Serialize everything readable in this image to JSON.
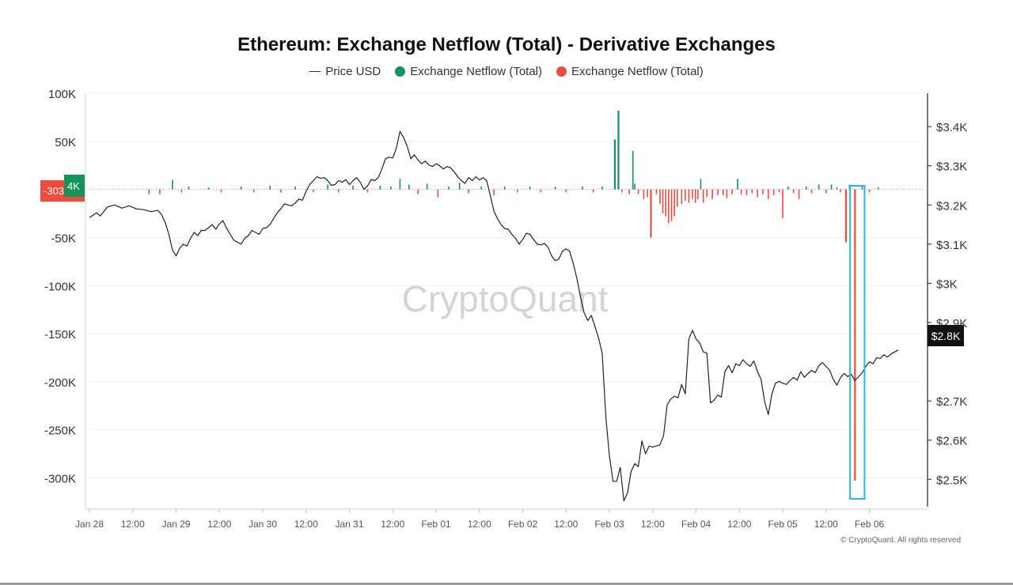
{
  "chart_data": {
    "type": "bar",
    "title": "Ethereum: Exchange Netflow (Total) - Derivative Exchanges",
    "legend": {
      "placement": "top-center",
      "items": [
        {
          "label": "Price USD",
          "kind": "line",
          "color": "#333333"
        },
        {
          "label": "Exchange Netflow (Total)",
          "kind": "dot",
          "color": "#14935B"
        },
        {
          "label": "Exchange Netflow (Total)",
          "kind": "dot",
          "color": "#F04A3E"
        }
      ]
    },
    "left_axis": {
      "label": "",
      "range": [
        -330000,
        100000
      ],
      "ticks": [
        {
          "value": 100000,
          "label": "100K"
        },
        {
          "value": 50000,
          "label": "50K"
        },
        {
          "value": -50000,
          "label": "-50K"
        },
        {
          "value": -100000,
          "label": "-100K"
        },
        {
          "value": -150000,
          "label": "-150K"
        },
        {
          "value": -200000,
          "label": "-200K"
        },
        {
          "value": -250000,
          "label": "-250K"
        },
        {
          "value": -300000,
          "label": "-300K"
        }
      ]
    },
    "right_axis": {
      "label": "",
      "range": [
        2430,
        3485
      ],
      "ticks": [
        {
          "value": 3400,
          "label": "$3.4K"
        },
        {
          "value": 3300,
          "label": "$3.3K"
        },
        {
          "value": 3200,
          "label": "$3.2K"
        },
        {
          "value": 3100,
          "label": "$3.1K"
        },
        {
          "value": 3000,
          "label": "$3K"
        },
        {
          "value": 2900,
          "label": "$2.9K"
        },
        {
          "value": 2700,
          "label": "$2.7K"
        },
        {
          "value": 2600,
          "label": "$2.6K"
        },
        {
          "value": 2500,
          "label": "$2.5K"
        }
      ]
    },
    "x_axis": {
      "range_hours": [
        0,
        231
      ],
      "ticks": [
        {
          "h": 0,
          "label": "Jan 28"
        },
        {
          "h": 12,
          "label": "12:00"
        },
        {
          "h": 24,
          "label": "Jan 29"
        },
        {
          "h": 36,
          "label": "12:00"
        },
        {
          "h": 48,
          "label": "Jan 30"
        },
        {
          "h": 60,
          "label": "12:00"
        },
        {
          "h": 72,
          "label": "Jan 31"
        },
        {
          "h": 84,
          "label": "12:00"
        },
        {
          "h": 96,
          "label": "Feb 01"
        },
        {
          "h": 108,
          "label": "12:00"
        },
        {
          "h": 120,
          "label": "Feb 02"
        },
        {
          "h": 132,
          "label": "12:00"
        },
        {
          "h": 144,
          "label": "Feb 03"
        },
        {
          "h": 156,
          "label": "12:00"
        },
        {
          "h": 168,
          "label": "Feb 04"
        },
        {
          "h": 180,
          "label": "12:00"
        },
        {
          "h": 192,
          "label": "Feb 05"
        },
        {
          "h": 204,
          "label": "12:00"
        },
        {
          "h": 216,
          "label": "Feb 06"
        }
      ]
    },
    "grid": true,
    "current_price_label": "$2.8K",
    "current_netflow_labels": [
      "-303",
      "4K"
    ],
    "watermark": "CryptoQuant",
    "highlight_box_hours": [
      210,
      214
    ],
    "netflow": [
      [
        16.5,
        -5000
      ],
      [
        19.5,
        -5000
      ],
      [
        23,
        10000
      ],
      [
        25.5,
        -3000
      ],
      [
        27.5,
        3000
      ],
      [
        33,
        2000
      ],
      [
        36.5,
        -3000
      ],
      [
        42,
        3000
      ],
      [
        45.5,
        -3000
      ],
      [
        50,
        4000
      ],
      [
        53,
        -3000
      ],
      [
        57,
        3000
      ],
      [
        62,
        -3000
      ],
      [
        66,
        5000
      ],
      [
        69,
        -3000
      ],
      [
        73,
        4000
      ],
      [
        77,
        -3000
      ],
      [
        80.5,
        4000
      ],
      [
        83.5,
        3000
      ],
      [
        86,
        11000
      ],
      [
        88.5,
        5000
      ],
      [
        91,
        -5000
      ],
      [
        93.5,
        6000
      ],
      [
        96.5,
        -8000
      ],
      [
        99.5,
        3000
      ],
      [
        102.5,
        7000
      ],
      [
        105,
        -4000
      ],
      [
        108.5,
        3000
      ],
      [
        112,
        -6000
      ],
      [
        115,
        3000
      ],
      [
        118.5,
        -3000
      ],
      [
        122,
        3000
      ],
      [
        125,
        -3000
      ],
      [
        129,
        3000
      ],
      [
        132,
        -3000
      ],
      [
        136.5,
        3000
      ],
      [
        139.5,
        -3000
      ],
      [
        142,
        3000
      ],
      [
        145.5,
        52000
      ],
      [
        146.5,
        82000
      ],
      [
        147.5,
        -3000
      ],
      [
        149.5,
        -5000
      ],
      [
        150.5,
        40000
      ],
      [
        151,
        6000
      ],
      [
        152,
        -5000
      ],
      [
        153.5,
        -10000
      ],
      [
        154.5,
        -8000
      ],
      [
        155.5,
        -50000
      ],
      [
        157,
        -5000
      ],
      [
        158,
        -15000
      ],
      [
        158.8,
        -25000
      ],
      [
        159.6,
        -28000
      ],
      [
        160.4,
        -35000
      ],
      [
        161.2,
        -33000
      ],
      [
        162,
        -28000
      ],
      [
        162.8,
        -18000
      ],
      [
        164,
        -15000
      ],
      [
        165,
        -12000
      ],
      [
        166,
        -14000
      ],
      [
        167,
        -10000
      ],
      [
        167.8,
        -14000
      ],
      [
        168.5,
        -10000
      ],
      [
        169.3,
        11000
      ],
      [
        170,
        -14000
      ],
      [
        171,
        -8000
      ],
      [
        172.5,
        -10000
      ],
      [
        174,
        -6000
      ],
      [
        175.5,
        -6000
      ],
      [
        176.5,
        -9000
      ],
      [
        178,
        -5000
      ],
      [
        179.5,
        11000
      ],
      [
        180.5,
        -5000
      ],
      [
        182,
        -6000
      ],
      [
        183.5,
        -4000
      ],
      [
        185,
        -8000
      ],
      [
        186.5,
        -5000
      ],
      [
        188,
        -10000
      ],
      [
        189.5,
        -6000
      ],
      [
        191,
        -3000
      ],
      [
        192,
        -30000
      ],
      [
        193.5,
        3000
      ],
      [
        195,
        -4000
      ],
      [
        196.5,
        -10000
      ],
      [
        198.5,
        3000
      ],
      [
        200,
        -4000
      ],
      [
        202,
        5000
      ],
      [
        204,
        -4000
      ],
      [
        205.5,
        5000
      ],
      [
        207,
        2000
      ],
      [
        208,
        -3000
      ],
      [
        209.5,
        -55000
      ],
      [
        210.5,
        5000
      ],
      [
        212,
        -303000
      ],
      [
        214,
        4000
      ],
      [
        216,
        -3000
      ],
      [
        218.5,
        2000
      ]
    ],
    "price": [
      [
        0,
        3168
      ],
      [
        2,
        3180
      ],
      [
        3,
        3172
      ],
      [
        5,
        3195
      ],
      [
        7,
        3200
      ],
      [
        9,
        3192
      ],
      [
        11,
        3198
      ],
      [
        13,
        3190
      ],
      [
        15,
        3188
      ],
      [
        17,
        3183
      ],
      [
        19,
        3186
      ],
      [
        20,
        3175
      ],
      [
        21,
        3155
      ],
      [
        22,
        3125
      ],
      [
        23,
        3085
      ],
      [
        24,
        3070
      ],
      [
        25,
        3090
      ],
      [
        26,
        3100
      ],
      [
        27,
        3095
      ],
      [
        28,
        3115
      ],
      [
        29,
        3130
      ],
      [
        30,
        3122
      ],
      [
        31,
        3135
      ],
      [
        32,
        3135
      ],
      [
        33,
        3142
      ],
      [
        34,
        3150
      ],
      [
        35,
        3138
      ],
      [
        36,
        3152
      ],
      [
        37,
        3160
      ],
      [
        38,
        3140
      ],
      [
        39,
        3125
      ],
      [
        40,
        3110
      ],
      [
        41,
        3105
      ],
      [
        42,
        3100
      ],
      [
        43,
        3115
      ],
      [
        44,
        3122
      ],
      [
        45,
        3135
      ],
      [
        46,
        3130
      ],
      [
        47,
        3125
      ],
      [
        48,
        3140
      ],
      [
        49,
        3142
      ],
      [
        50,
        3150
      ],
      [
        51,
        3165
      ],
      [
        52,
        3180
      ],
      [
        53,
        3190
      ],
      [
        54,
        3203
      ],
      [
        55,
        3200
      ],
      [
        56,
        3198
      ],
      [
        57,
        3205
      ],
      [
        58,
        3215
      ],
      [
        59,
        3212
      ],
      [
        60,
        3235
      ],
      [
        61,
        3252
      ],
      [
        62,
        3262
      ],
      [
        63,
        3272
      ],
      [
        64,
        3268
      ],
      [
        65,
        3270
      ],
      [
        66,
        3262
      ],
      [
        67,
        3250
      ],
      [
        68,
        3252
      ],
      [
        69,
        3262
      ],
      [
        70,
        3258
      ],
      [
        71,
        3265
      ],
      [
        72,
        3252
      ],
      [
        73,
        3262
      ],
      [
        74,
        3270
      ],
      [
        75,
        3258
      ],
      [
        76,
        3240
      ],
      [
        77,
        3248
      ],
      [
        78,
        3265
      ],
      [
        79,
        3262
      ],
      [
        80,
        3270
      ],
      [
        81,
        3292
      ],
      [
        82,
        3318
      ],
      [
        83,
        3322
      ],
      [
        84,
        3320
      ],
      [
        85,
        3345
      ],
      [
        86,
        3388
      ],
      [
        87,
        3372
      ],
      [
        88,
        3350
      ],
      [
        89,
        3318
      ],
      [
        90,
        3328
      ],
      [
        91,
        3315
      ],
      [
        92,
        3305
      ],
      [
        93,
        3312
      ],
      [
        94,
        3302
      ],
      [
        95,
        3298
      ],
      [
        96,
        3305
      ],
      [
        97,
        3300
      ],
      [
        98,
        3292
      ],
      [
        99,
        3298
      ],
      [
        100,
        3295
      ],
      [
        101,
        3285
      ],
      [
        102,
        3272
      ],
      [
        103,
        3262
      ],
      [
        104,
        3255
      ],
      [
        105,
        3270
      ],
      [
        106,
        3262
      ],
      [
        107,
        3272
      ],
      [
        108,
        3264
      ],
      [
        109,
        3270
      ],
      [
        110,
        3262
      ],
      [
        111,
        3225
      ],
      [
        112,
        3185
      ],
      [
        113,
        3165
      ],
      [
        114,
        3150
      ],
      [
        115,
        3140
      ],
      [
        116,
        3138
      ],
      [
        117,
        3125
      ],
      [
        118,
        3115
      ],
      [
        119,
        3100
      ],
      [
        120,
        3112
      ],
      [
        121,
        3128
      ],
      [
        122,
        3125
      ],
      [
        123,
        3112
      ],
      [
        124,
        3100
      ],
      [
        125,
        3098
      ],
      [
        126,
        3102
      ],
      [
        127,
        3092
      ],
      [
        128,
        3070
      ],
      [
        129,
        3058
      ],
      [
        130,
        3062
      ],
      [
        131,
        3082
      ],
      [
        132,
        3088
      ],
      [
        133,
        3082
      ],
      [
        134,
        3050
      ],
      [
        135,
        3012
      ],
      [
        136,
        2965
      ],
      [
        137,
        2925
      ],
      [
        138,
        2905
      ],
      [
        139,
        2918
      ],
      [
        140,
        2890
      ],
      [
        141,
        2860
      ],
      [
        142,
        2822
      ],
      [
        143,
        2660
      ],
      [
        144,
        2560
      ],
      [
        145,
        2495
      ],
      [
        146,
        2495
      ],
      [
        147,
        2530
      ],
      [
        148,
        2445
      ],
      [
        149,
        2465
      ],
      [
        150,
        2520
      ],
      [
        151,
        2540
      ],
      [
        152,
        2532
      ],
      [
        153,
        2598
      ],
      [
        154,
        2565
      ],
      [
        155,
        2585
      ],
      [
        156,
        2582
      ],
      [
        157,
        2585
      ],
      [
        158,
        2588
      ],
      [
        159,
        2612
      ],
      [
        160,
        2690
      ],
      [
        161,
        2705
      ],
      [
        162,
        2712
      ],
      [
        163,
        2708
      ],
      [
        164,
        2742
      ],
      [
        165,
        2718
      ],
      [
        166,
        2858
      ],
      [
        167,
        2880
      ],
      [
        168,
        2858
      ],
      [
        169,
        2848
      ],
      [
        170,
        2825
      ],
      [
        171,
        2822
      ],
      [
        172,
        2695
      ],
      [
        173,
        2702
      ],
      [
        174,
        2715
      ],
      [
        175,
        2710
      ],
      [
        176,
        2775
      ],
      [
        177,
        2790
      ],
      [
        178,
        2772
      ],
      [
        179,
        2795
      ],
      [
        180,
        2790
      ],
      [
        181,
        2805
      ],
      [
        182,
        2795
      ],
      [
        183,
        2788
      ],
      [
        184,
        2802
      ],
      [
        185,
        2775
      ],
      [
        186,
        2755
      ],
      [
        187,
        2698
      ],
      [
        188,
        2665
      ],
      [
        189,
        2718
      ],
      [
        190,
        2745
      ],
      [
        191,
        2750
      ],
      [
        192,
        2745
      ],
      [
        193,
        2742
      ],
      [
        194,
        2752
      ],
      [
        195,
        2760
      ],
      [
        196,
        2753
      ],
      [
        197,
        2775
      ],
      [
        198,
        2760
      ],
      [
        199,
        2770
      ],
      [
        200,
        2778
      ],
      [
        201,
        2772
      ],
      [
        202,
        2790
      ],
      [
        203,
        2798
      ],
      [
        204,
        2788
      ],
      [
        205,
        2778
      ],
      [
        206,
        2755
      ],
      [
        207,
        2740
      ],
      [
        208,
        2760
      ],
      [
        209,
        2770
      ],
      [
        210,
        2762
      ],
      [
        211,
        2768
      ],
      [
        212,
        2752
      ],
      [
        213,
        2762
      ],
      [
        214,
        2772
      ],
      [
        215,
        2788
      ],
      [
        216,
        2800
      ],
      [
        217,
        2795
      ],
      [
        218,
        2810
      ],
      [
        219,
        2808
      ],
      [
        220,
        2818
      ],
      [
        221,
        2812
      ],
      [
        222,
        2820
      ],
      [
        223,
        2825
      ],
      [
        224,
        2830
      ]
    ]
  },
  "copyright": "© CryptoQuant. All rights reserved"
}
